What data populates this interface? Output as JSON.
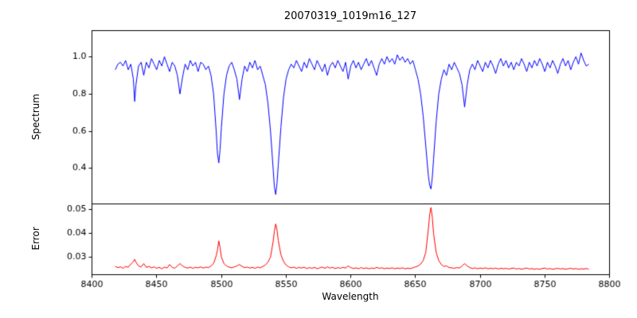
{
  "figure": {
    "title": "20070319_1019m16_127",
    "background": "#ffffff",
    "text_color": "#000000"
  },
  "chart_data": {
    "type": "line",
    "title": "20070319_1019m16_127",
    "xlabel": "Wavelength",
    "layout": {
      "panels": "stacked-shared-x",
      "height_ratio": [
        2.45,
        1
      ],
      "grid": false,
      "legend": "none"
    },
    "xlim": [
      8400,
      8800
    ],
    "xticks": [
      8400,
      8450,
      8500,
      8550,
      8600,
      8650,
      8700,
      8750,
      8800
    ],
    "xticklabels": [
      "8400",
      "8450",
      "8500",
      "8550",
      "8600",
      "8650",
      "8700",
      "8750",
      "8800"
    ],
    "x": [
      8418,
      8420,
      8422,
      8424,
      8426,
      8428,
      8430,
      8432,
      8433,
      8434,
      8436,
      8438,
      8440,
      8442,
      8444,
      8446,
      8448,
      8450,
      8452,
      8454,
      8456,
      8458,
      8460,
      8462,
      8464,
      8466,
      8468,
      8470,
      8472,
      8474,
      8476,
      8478,
      8480,
      8482,
      8484,
      8486,
      8488,
      8490,
      8492,
      8494,
      8496,
      8497,
      8498,
      8499,
      8500,
      8502,
      8504,
      8506,
      8508,
      8510,
      8512,
      8514,
      8516,
      8518,
      8520,
      8522,
      8524,
      8526,
      8528,
      8530,
      8532,
      8534,
      8536,
      8538,
      8540,
      8541,
      8542,
      8543,
      8544,
      8546,
      8548,
      8550,
      8552,
      8554,
      8556,
      8558,
      8560,
      8562,
      8564,
      8566,
      8568,
      8570,
      8572,
      8574,
      8576,
      8578,
      8580,
      8582,
      8584,
      8586,
      8588,
      8590,
      8592,
      8594,
      8596,
      8598,
      8600,
      8602,
      8604,
      8606,
      8608,
      8610,
      8612,
      8614,
      8616,
      8618,
      8620,
      8622,
      8624,
      8626,
      8628,
      8630,
      8632,
      8634,
      8636,
      8638,
      8640,
      8642,
      8644,
      8646,
      8648,
      8650,
      8652,
      8654,
      8656,
      8658,
      8660,
      8661,
      8662,
      8663,
      8664,
      8666,
      8668,
      8670,
      8672,
      8674,
      8676,
      8678,
      8680,
      8682,
      8684,
      8686,
      8688,
      8690,
      8692,
      8694,
      8696,
      8698,
      8700,
      8702,
      8704,
      8706,
      8708,
      8710,
      8712,
      8714,
      8716,
      8718,
      8720,
      8722,
      8724,
      8726,
      8728,
      8730,
      8732,
      8734,
      8736,
      8738,
      8740,
      8742,
      8744,
      8746,
      8748,
      8750,
      8752,
      8754,
      8756,
      8758,
      8760,
      8762,
      8764,
      8766,
      8768,
      8770,
      8772,
      8774,
      8776,
      8778,
      8780,
      8782,
      8784
    ],
    "series": [
      {
        "name": "Spectrum",
        "color": "#0000ff",
        "panel": "top",
        "ylim": [
          0.21,
          1.14
        ],
        "yticks": [
          0.4,
          0.6,
          0.8,
          1.0
        ],
        "yticklabels": [
          "0.4",
          "0.6",
          "0.8",
          "1.0"
        ],
        "notable_features": "Ca II triplet absorption lines near 8498, 8542, 8662; weaker lines near 8433, 8468, 8514, 8688",
        "values": [
          0.93,
          0.96,
          0.97,
          0.95,
          0.98,
          0.93,
          0.96,
          0.88,
          0.76,
          0.85,
          0.95,
          0.97,
          0.9,
          0.97,
          0.94,
          0.99,
          0.96,
          0.93,
          0.98,
          0.95,
          1.0,
          0.96,
          0.92,
          0.97,
          0.95,
          0.9,
          0.8,
          0.89,
          0.96,
          0.93,
          0.98,
          0.95,
          0.97,
          0.92,
          0.97,
          0.96,
          0.93,
          0.95,
          0.9,
          0.8,
          0.6,
          0.48,
          0.43,
          0.5,
          0.62,
          0.8,
          0.9,
          0.95,
          0.97,
          0.93,
          0.88,
          0.77,
          0.88,
          0.95,
          0.92,
          0.97,
          0.94,
          0.98,
          0.93,
          0.95,
          0.9,
          0.85,
          0.75,
          0.6,
          0.4,
          0.3,
          0.26,
          0.32,
          0.42,
          0.62,
          0.78,
          0.88,
          0.93,
          0.96,
          0.94,
          0.98,
          0.95,
          0.92,
          0.97,
          0.94,
          0.99,
          0.96,
          0.93,
          0.98,
          0.95,
          0.92,
          0.96,
          0.9,
          0.95,
          0.97,
          0.94,
          0.98,
          0.95,
          0.92,
          0.97,
          0.88,
          0.95,
          0.98,
          0.94,
          0.97,
          0.93,
          0.96,
          0.99,
          0.95,
          0.98,
          0.94,
          0.9,
          0.96,
          0.99,
          0.96,
          1.0,
          0.97,
          0.99,
          0.96,
          1.01,
          0.98,
          1.0,
          0.97,
          0.99,
          0.96,
          0.98,
          0.93,
          0.88,
          0.8,
          0.68,
          0.52,
          0.36,
          0.31,
          0.29,
          0.35,
          0.45,
          0.65,
          0.8,
          0.88,
          0.93,
          0.9,
          0.96,
          0.93,
          0.97,
          0.94,
          0.91,
          0.85,
          0.73,
          0.85,
          0.93,
          0.96,
          0.93,
          0.98,
          0.95,
          0.92,
          0.97,
          0.94,
          0.98,
          0.95,
          0.91,
          0.96,
          0.99,
          0.95,
          0.98,
          0.94,
          0.97,
          0.93,
          0.97,
          0.95,
          0.99,
          0.96,
          0.92,
          0.97,
          0.94,
          0.98,
          0.95,
          0.99,
          0.96,
          0.92,
          0.97,
          0.94,
          0.98,
          0.95,
          0.91,
          0.96,
          0.99,
          0.95,
          0.98,
          0.93,
          0.97,
          1.0,
          0.96,
          1.02,
          0.98,
          0.95,
          0.96
        ]
      },
      {
        "name": "Error",
        "color": "#ff0000",
        "panel": "bottom",
        "ylim": [
          0.0225,
          0.0525
        ],
        "yticks": [
          0.03,
          0.04,
          0.05
        ],
        "yticklabels": [
          "0.03",
          "0.04",
          "0.05"
        ],
        "notable_features": "error peaks at the Ca II line cores: ~0.037 at 8498, ~0.044 at 8542, ~0.051 at 8662",
        "values": [
          0.026,
          0.0255,
          0.0258,
          0.0252,
          0.026,
          0.0256,
          0.027,
          0.028,
          0.029,
          0.0278,
          0.0262,
          0.0258,
          0.0272,
          0.0256,
          0.026,
          0.0254,
          0.0258,
          0.0252,
          0.0256,
          0.025,
          0.0257,
          0.0253,
          0.0268,
          0.0256,
          0.0252,
          0.0262,
          0.0272,
          0.0262,
          0.0256,
          0.0253,
          0.0257,
          0.0252,
          0.0256,
          0.0254,
          0.0258,
          0.0253,
          0.0257,
          0.0255,
          0.0262,
          0.0272,
          0.0305,
          0.033,
          0.0368,
          0.034,
          0.03,
          0.0272,
          0.0262,
          0.0257,
          0.0254,
          0.0258,
          0.0262,
          0.0268,
          0.026,
          0.0255,
          0.0257,
          0.0253,
          0.0256,
          0.0252,
          0.0257,
          0.0254,
          0.026,
          0.0266,
          0.0278,
          0.03,
          0.0365,
          0.041,
          0.044,
          0.0415,
          0.037,
          0.031,
          0.0282,
          0.0266,
          0.0258,
          0.0254,
          0.0257,
          0.0252,
          0.0256,
          0.0253,
          0.0257,
          0.0251,
          0.0255,
          0.0252,
          0.0256,
          0.025,
          0.0254,
          0.0257,
          0.0252,
          0.0258,
          0.0253,
          0.0256,
          0.0251,
          0.0255,
          0.0252,
          0.0256,
          0.0253,
          0.0262,
          0.0255,
          0.0251,
          0.0254,
          0.025,
          0.0255,
          0.0251,
          0.0254,
          0.025,
          0.0253,
          0.0251,
          0.0256,
          0.0252,
          0.0254,
          0.025,
          0.0253,
          0.0251,
          0.0254,
          0.025,
          0.0253,
          0.0251,
          0.0254,
          0.025,
          0.0252,
          0.0251,
          0.0254,
          0.0258,
          0.0262,
          0.027,
          0.0285,
          0.032,
          0.042,
          0.048,
          0.051,
          0.047,
          0.04,
          0.032,
          0.0285,
          0.0268,
          0.026,
          0.0262,
          0.0255,
          0.0254,
          0.0252,
          0.0255,
          0.0253,
          0.0262,
          0.0272,
          0.0262,
          0.0255,
          0.0251,
          0.0254,
          0.025,
          0.0253,
          0.0251,
          0.0254,
          0.025,
          0.0252,
          0.025,
          0.0253,
          0.0249,
          0.0252,
          0.025,
          0.0252,
          0.0249,
          0.0251,
          0.0253,
          0.0249,
          0.0251,
          0.0248,
          0.0251,
          0.0253,
          0.0249,
          0.0251,
          0.0248,
          0.025,
          0.0248,
          0.0251,
          0.0253,
          0.0249,
          0.0251,
          0.0248,
          0.025,
          0.0252,
          0.0249,
          0.0251,
          0.0248,
          0.025,
          0.0252,
          0.0249,
          0.0251,
          0.0248,
          0.025,
          0.0249,
          0.0251,
          0.0248
        ]
      }
    ]
  }
}
